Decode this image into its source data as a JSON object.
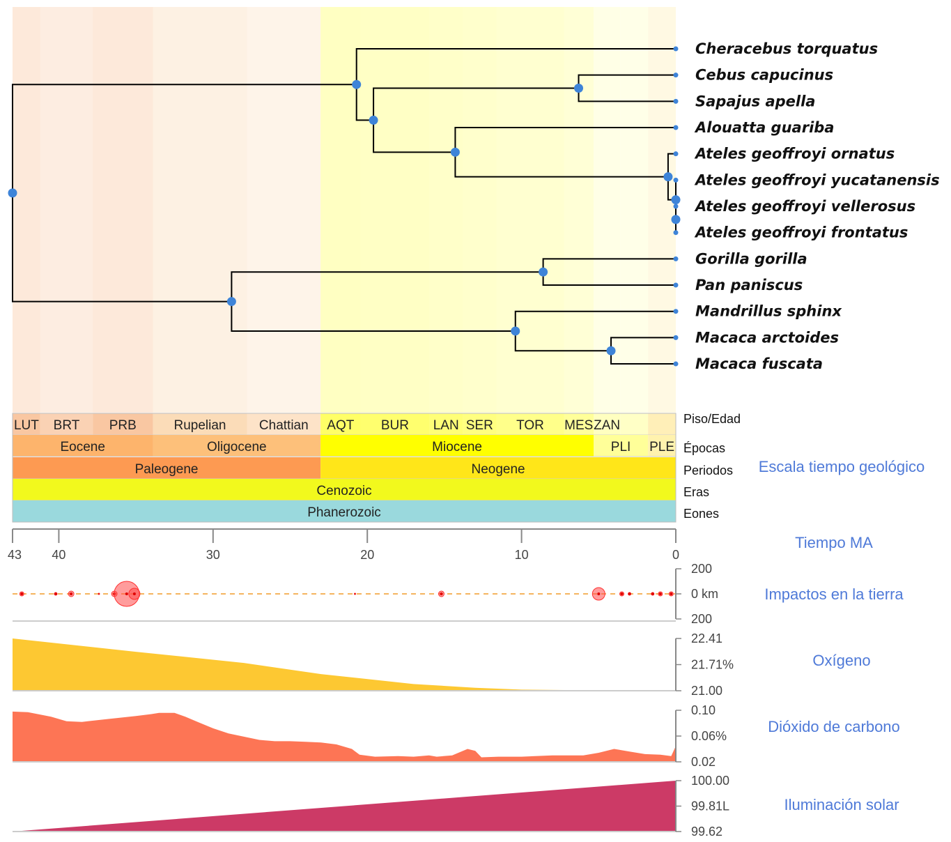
{
  "taxa": [
    {
      "name": "Cheracebus torquatus",
      "age": 0
    },
    {
      "name": "Cebus capucinus",
      "age": 0
    },
    {
      "name": "Sapajus apella",
      "age": 0
    },
    {
      "name": "Alouatta guariba",
      "age": 0
    },
    {
      "name": "Ateles geoffroyi ornatus",
      "age": 0
    },
    {
      "name": "Ateles geoffroyi yucatanensis",
      "age": 0
    },
    {
      "name": "Ateles geoffroyi vellerosus",
      "age": 0
    },
    {
      "name": "Ateles geoffroyi frontatus",
      "age": 0
    },
    {
      "name": "Gorilla gorilla",
      "age": 0
    },
    {
      "name": "Pan paniscus",
      "age": 0
    },
    {
      "name": "Mandrillus sphinx",
      "age": 0
    },
    {
      "name": "Macaca arctoides",
      "age": 0
    },
    {
      "name": "Macaca fuscata",
      "age": 0
    }
  ],
  "tree": {
    "age": 43,
    "children": [
      {
        "age": 20.7,
        "children": [
          {
            "leaf": 0
          },
          {
            "age": 19.6,
            "children": [
              {
                "age": 6.3,
                "children": [
                  {
                    "leaf": 1
                  },
                  {
                    "leaf": 2
                  }
                ]
              },
              {
                "age": 14.3,
                "children": [
                  {
                    "leaf": 3
                  },
                  {
                    "age": 0.5,
                    "children": [
                      {
                        "leaf": 4
                      },
                      {
                        "age": 0,
                        "children": [
                          {
                            "leaf": 5
                          },
                          {
                            "age": 0,
                            "children": [
                              {
                                "leaf": 6
                              },
                              {
                                "leaf": 7
                              }
                            ]
                          }
                        ]
                      }
                    ]
                  }
                ]
              }
            ]
          }
        ]
      },
      {
        "age": 28.8,
        "children": [
          {
            "age": 8.6,
            "children": [
              {
                "leaf": 8
              },
              {
                "leaf": 9
              }
            ]
          },
          {
            "age": 10.4,
            "children": [
              {
                "leaf": 10
              },
              {
                "age": 4.2,
                "children": [
                  {
                    "leaf": 11
                  },
                  {
                    "leaf": 12
                  }
                ]
              }
            ]
          }
        ]
      }
    ]
  },
  "time_axis": {
    "min": 0,
    "max": 43,
    "ticks": [
      43,
      40,
      30,
      20,
      10,
      0
    ],
    "label": "Tiempo MA"
  },
  "timescale": {
    "title": "Escala tiempo geológico",
    "rows": [
      {
        "label": "Piso/Edad",
        "bands": [
          {
            "name": "LUT",
            "start": 43,
            "end": 41.2,
            "color": "#f9c7a2"
          },
          {
            "name": "BRT",
            "start": 41.2,
            "end": 37.8,
            "color": "#fad2b4"
          },
          {
            "name": "PRB",
            "start": 37.8,
            "end": 33.9,
            "color": "#f9c7a2"
          },
          {
            "name": "Rupelian",
            "start": 33.9,
            "end": 27.8,
            "color": "#fbdcb8"
          },
          {
            "name": "Chattian",
            "start": 27.8,
            "end": 23.03,
            "color": "#fde3c8"
          },
          {
            "name": "AQT",
            "start": 23.03,
            "end": 20.44,
            "color": "#ffff66"
          },
          {
            "name": "BUR",
            "start": 20.44,
            "end": 15.97,
            "color": "#ffff6e"
          },
          {
            "name": "LAN",
            "start": 15.97,
            "end": 13.82,
            "color": "#ffff77"
          },
          {
            "name": "SER",
            "start": 13.82,
            "end": 11.63,
            "color": "#ffff80"
          },
          {
            "name": "TOR",
            "start": 11.63,
            "end": 7.25,
            "color": "#ffff8a"
          },
          {
            "name": "MES",
            "start": 7.25,
            "end": 5.33,
            "color": "#ffff99"
          },
          {
            "name": "ZAN",
            "start": 5.33,
            "end": 3.6,
            "color": "#ffffc0"
          },
          {
            "name": "",
            "start": 3.6,
            "end": 1.8,
            "color": "#ffffc6"
          },
          {
            "name": "",
            "start": 1.8,
            "end": 0,
            "color": "#ffefb8"
          }
        ]
      },
      {
        "label": "Épocas",
        "bands": [
          {
            "name": "Eocene",
            "start": 43,
            "end": 33.9,
            "color": "#fdb46c"
          },
          {
            "name": "Oligocene",
            "start": 33.9,
            "end": 23.03,
            "color": "#fdc07a"
          },
          {
            "name": "Miocene",
            "start": 23.03,
            "end": 5.33,
            "color": "#ffff00"
          },
          {
            "name": "PLI",
            "start": 5.33,
            "end": 1.8,
            "color": "#ffff99"
          },
          {
            "name": "PLE",
            "start": 1.8,
            "end": 0,
            "color": "#fff2ae"
          }
        ]
      },
      {
        "label": "Periodos",
        "bands": [
          {
            "name": "Paleogene",
            "start": 43,
            "end": 23.03,
            "color": "#fd9a52"
          },
          {
            "name": "Neogene",
            "start": 23.03,
            "end": 0,
            "color": "#ffe619"
          }
        ]
      },
      {
        "label": "Eras",
        "bands": [
          {
            "name": "Cenozoic",
            "start": 43,
            "end": 0,
            "color": "#f2f91d"
          }
        ]
      },
      {
        "label": "Eones",
        "bands": [
          {
            "name": "Phanerozoic",
            "start": 43,
            "end": 0,
            "color": "#9ad9dd"
          }
        ]
      }
    ]
  },
  "impacts": {
    "label": "Impactos en la tierra",
    "axis": [
      "200",
      "0 km",
      "200"
    ],
    "items": [
      {
        "age": 42.4,
        "size": 3
      },
      {
        "age": 40.2,
        "size": 2
      },
      {
        "age": 39.2,
        "size": 4
      },
      {
        "age": 37.4,
        "size": 1
      },
      {
        "age": 36.4,
        "size": 4
      },
      {
        "age": 35.6,
        "size": 18
      },
      {
        "age": 35.1,
        "size": 8
      },
      {
        "age": 20.8,
        "size": 1
      },
      {
        "age": 15.2,
        "size": 4
      },
      {
        "age": 5.0,
        "size": 9
      },
      {
        "age": 3.5,
        "size": 3
      },
      {
        "age": 3.0,
        "size": 2
      },
      {
        "age": 1.5,
        "size": 2
      },
      {
        "age": 1.0,
        "size": 3
      },
      {
        "age": 0.3,
        "size": 3
      }
    ]
  },
  "oxygen": {
    "label": "Oxígeno",
    "axis": [
      "22.41",
      "21.71%",
      "21.00"
    ],
    "min": 21.0,
    "max": 22.41,
    "points": [
      [
        43,
        22.41
      ],
      [
        35,
        22.05
      ],
      [
        28,
        21.75
      ],
      [
        23,
        21.45
      ],
      [
        17,
        21.18
      ],
      [
        13,
        21.08
      ],
      [
        10,
        21.03
      ],
      [
        5,
        21.01
      ],
      [
        0,
        21.0
      ]
    ]
  },
  "co2": {
    "label": "Dióxido de carbono",
    "axis": [
      "0.10",
      "0.06%",
      "0.02"
    ],
    "min": 0.02,
    "max": 0.1,
    "points": [
      [
        43,
        0.098
      ],
      [
        42,
        0.097
      ],
      [
        40.5,
        0.09
      ],
      [
        39.5,
        0.083
      ],
      [
        38.5,
        0.082
      ],
      [
        37,
        0.086
      ],
      [
        35,
        0.091
      ],
      [
        34,
        0.094
      ],
      [
        33.5,
        0.096
      ],
      [
        32.5,
        0.096
      ],
      [
        31.8,
        0.09
      ],
      [
        31,
        0.082
      ],
      [
        30,
        0.072
      ],
      [
        29,
        0.064
      ],
      [
        28,
        0.059
      ],
      [
        27,
        0.054
      ],
      [
        26,
        0.052
      ],
      [
        25,
        0.052
      ],
      [
        24,
        0.051
      ],
      [
        23,
        0.05
      ],
      [
        22,
        0.047
      ],
      [
        21,
        0.04
      ],
      [
        20.5,
        0.031
      ],
      [
        19.5,
        0.028
      ],
      [
        18,
        0.029
      ],
      [
        17,
        0.028
      ],
      [
        16,
        0.03
      ],
      [
        15.5,
        0.028
      ],
      [
        14.5,
        0.03
      ],
      [
        14,
        0.035
      ],
      [
        13.5,
        0.04
      ],
      [
        13,
        0.037
      ],
      [
        12.6,
        0.027
      ],
      [
        11.5,
        0.028
      ],
      [
        10,
        0.028
      ],
      [
        8,
        0.03
      ],
      [
        6,
        0.03
      ],
      [
        5,
        0.034
      ],
      [
        4,
        0.04
      ],
      [
        3,
        0.036
      ],
      [
        2,
        0.032
      ],
      [
        1,
        0.031
      ],
      [
        0.3,
        0.029
      ],
      [
        0.05,
        0.042
      ],
      [
        0,
        0.04
      ]
    ]
  },
  "solar": {
    "label": "Iluminación solar",
    "axis": [
      "100.00",
      "99.81L",
      "99.62"
    ],
    "min": 99.62,
    "max": 100.0,
    "points": [
      [
        43,
        99.62
      ],
      [
        0,
        100.0
      ]
    ]
  }
}
